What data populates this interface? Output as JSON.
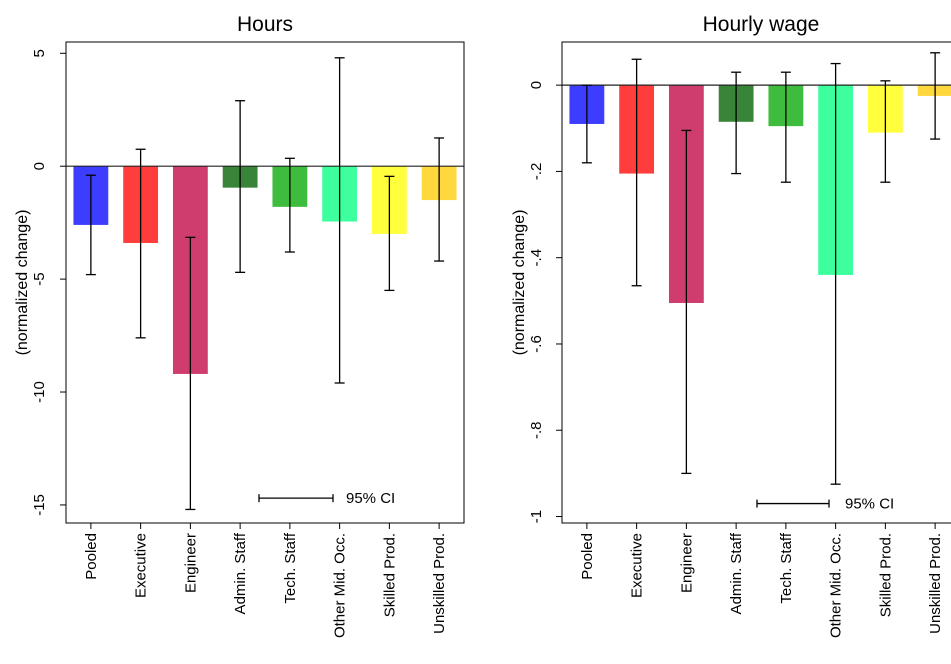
{
  "chart_data": [
    {
      "type": "bar",
      "title": "Hours",
      "ylabel": "(normalized change)",
      "xlabel": "",
      "categories": [
        "Pooled",
        "Executive",
        "Engineer",
        "Admin. Staff",
        "Tech. Staff",
        "Other Mid. Occ.",
        "Skilled Prod.",
        "Unskilled Prod."
      ],
      "values": [
        -2.6,
        -3.4,
        -9.2,
        -0.95,
        -1.8,
        -2.45,
        -3.0,
        -1.5
      ],
      "ci_low": [
        -4.8,
        -7.6,
        -15.2,
        -4.7,
        -3.8,
        -9.6,
        -5.5,
        -4.2
      ],
      "ci_high": [
        -0.4,
        0.75,
        -3.15,
        2.9,
        0.35,
        4.8,
        -0.45,
        1.25
      ],
      "colors": [
        "#3333ff",
        "#ff3333",
        "#cc3366",
        "#2d7d2d",
        "#33b833",
        "#33ff99",
        "#ffff33",
        "#ffd633"
      ],
      "yticks": [
        5,
        0,
        -5,
        -10,
        -15
      ],
      "ytick_labels": [
        "5",
        "0",
        "-5",
        "-10",
        "-15"
      ],
      "ylim": [
        -15.8,
        5.5
      ],
      "grid": false,
      "ci_legend": "95% CI"
    },
    {
      "type": "bar",
      "title": "Hourly wage",
      "ylabel": "(normalized change)",
      "xlabel": "",
      "categories": [
        "Pooled",
        "Executive",
        "Engineer",
        "Admin. Staff",
        "Tech. Staff",
        "Other Mid. Occ.",
        "Skilled Prod.",
        "Unskilled Prod."
      ],
      "values": [
        -0.09,
        -0.205,
        -0.505,
        -0.085,
        -0.095,
        -0.44,
        -0.11,
        -0.025
      ],
      "ci_low": [
        -0.18,
        -0.465,
        -0.9,
        -0.205,
        -0.225,
        -0.925,
        -0.225,
        -0.125
      ],
      "ci_high": [
        0.0,
        0.06,
        -0.105,
        0.03,
        0.03,
        0.05,
        0.01,
        0.075
      ],
      "colors": [
        "#3333ff",
        "#ff3333",
        "#cc3366",
        "#2d7d2d",
        "#33b833",
        "#33ff99",
        "#ffff33",
        "#ffd633"
      ],
      "yticks": [
        0,
        -0.2,
        -0.4,
        -0.6,
        -0.8,
        -1
      ],
      "ytick_labels": [
        "0",
        "-.2",
        "-.4",
        "-.6",
        "-.8",
        "-1"
      ],
      "ylim": [
        -1.015,
        0.1
      ],
      "grid": false,
      "ci_legend": "95% CI"
    }
  ]
}
